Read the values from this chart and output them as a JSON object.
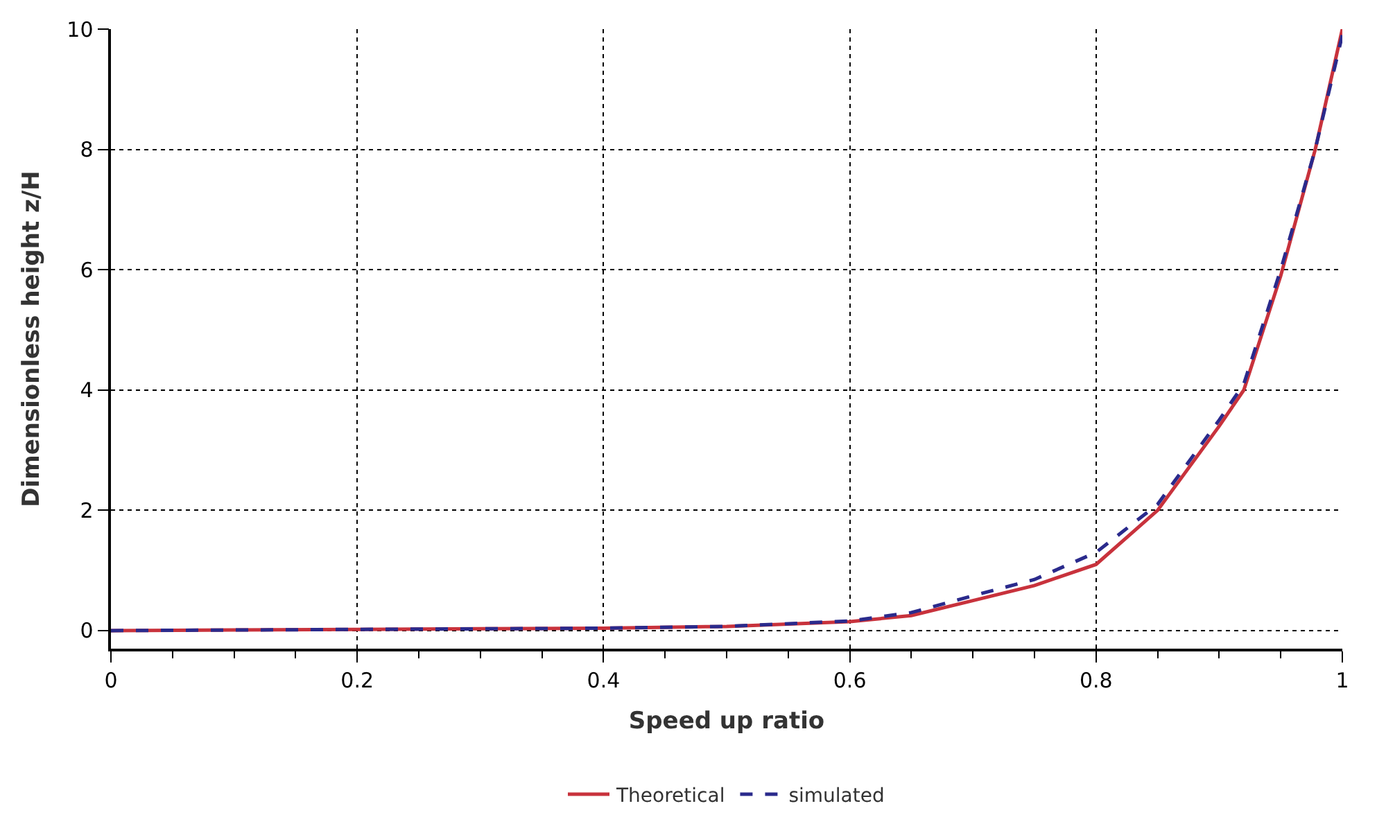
{
  "chart_data": {
    "type": "line",
    "xlabel": "Speed up ratio",
    "ylabel": "Dimensionless height z/H",
    "series": [
      {
        "name": "Theoretical",
        "color": "#c8323c",
        "line_style": "solid",
        "x": [
          0,
          0.1,
          0.2,
          0.3,
          0.4,
          0.5,
          0.6,
          0.65,
          0.7,
          0.75,
          0.8,
          0.85,
          0.9,
          0.92,
          0.95,
          0.978,
          1
        ],
        "values": [
          0,
          0.01,
          0.02,
          0.03,
          0.04,
          0.07,
          0.15,
          0.25,
          0.5,
          0.75,
          1.1,
          2.0,
          3.4,
          4.0,
          5.9,
          8.0,
          10
        ]
      },
      {
        "name": "simulated",
        "color": "#2a2a8c",
        "line_style": "dashed",
        "x": [
          0,
          0.1,
          0.2,
          0.3,
          0.4,
          0.5,
          0.6,
          0.65,
          0.7,
          0.75,
          0.8,
          0.85,
          0.9,
          0.92,
          0.95,
          0.978,
          1
        ],
        "values": [
          0,
          0.01,
          0.02,
          0.03,
          0.04,
          0.07,
          0.16,
          0.3,
          0.58,
          0.85,
          1.3,
          2.1,
          3.5,
          4.1,
          6.0,
          8.0,
          9.9
        ]
      }
    ],
    "xlim": [
      0,
      1
    ],
    "xticks": [
      0,
      {
        "value": 0.05,
        "label": null
      },
      0.2,
      {
        "value": 0.1,
        "label": null
      },
      {
        "value": 0.15,
        "label": null
      },
      {
        "value": 0.25,
        "label": null
      },
      {
        "value": 0.3,
        "label": null
      },
      {
        "value": 0.35,
        "label": null
      },
      0.4,
      {
        "value": 0.45,
        "label": null
      },
      {
        "value": 0.5,
        "label": null
      },
      {
        "value": 0.55,
        "label": null
      },
      0.6,
      {
        "value": 0.65,
        "label": null
      },
      {
        "value": 0.7,
        "label": null
      },
      {
        "value": 0.75,
        "label": null
      },
      0.8,
      {
        "value": 0.85,
        "label": null
      },
      {
        "value": 0.9,
        "label": null
      },
      {
        "value": 0.95,
        "label": null
      },
      1
    ],
    "ylim": [
      -0.3,
      10
    ],
    "yticks": [
      0,
      2,
      4,
      6,
      8,
      10
    ],
    "grid": true,
    "legend": "bottom",
    "marker": "none"
  }
}
